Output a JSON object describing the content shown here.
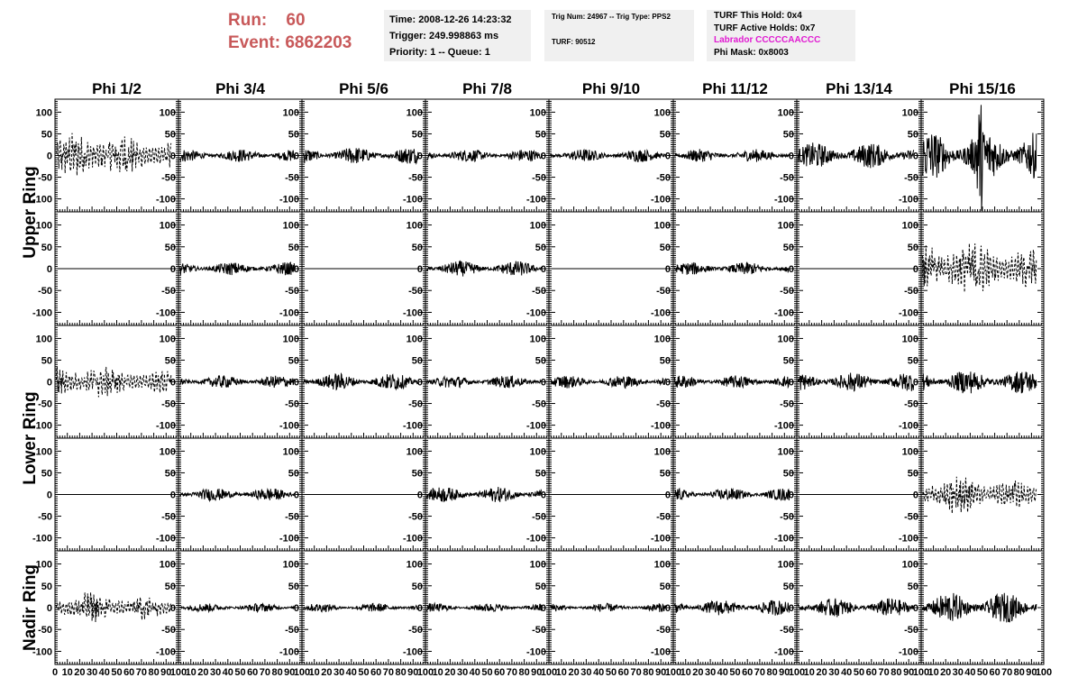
{
  "header": {
    "run_label": "Run:",
    "run_value": "60",
    "event_label": "Event:",
    "event_value": "6862203"
  },
  "info_panel_1": {
    "time": "Time: 2008-12-26 14:23:32",
    "trigger": "Trigger: 249.998863 ms",
    "priority": "Priority: 1 -- Queue: 1"
  },
  "info_panel_2": {
    "trig": "Trig Num: 24967 -- Trig Type: PPS2",
    "turf": "TURF: 90512"
  },
  "info_panel_3": {
    "hold": "TURF This Hold: 0x4",
    "active": "TURF Active Holds: 0x7",
    "labrador": "Labrador CCCCCAACCC",
    "phi_mask": "Phi Mask: 0x8003"
  },
  "colors": {
    "run_text": "#c8595a",
    "labrador_text": "#e11bd2",
    "panel_bg": "#f0f0f0",
    "trace": "#000000"
  },
  "columns": [
    "Phi 1/2",
    "Phi 3/4",
    "Phi 5/6",
    "Phi 7/8",
    "Phi 9/10",
    "Phi 11/12",
    "Phi 13/14",
    "Phi 15/16"
  ],
  "rings": [
    "Upper Ring",
    "Lower Ring",
    "Nadir Ring"
  ],
  "y_ticks": [
    "100",
    "50",
    "0",
    "-50",
    "-100"
  ],
  "x_ticks_first": [
    "0",
    "10",
    "20",
    "30",
    "40",
    "50",
    "60",
    "70",
    "80",
    "90",
    "100"
  ],
  "x_ticks_other": [
    "10",
    "20",
    "30",
    "40",
    "50",
    "60",
    "70",
    "80",
    "90",
    "100"
  ],
  "chart_data": {
    "type": "line",
    "xlim": [
      0,
      100
    ],
    "ylim": [
      -130,
      130
    ],
    "grid": false,
    "traces": [
      [
        "dashed",
        "solid",
        "solid",
        "solid",
        "solid",
        "solid",
        "solid",
        "solid"
      ],
      [
        "flat",
        "solid",
        "flat",
        "solid",
        "flat",
        "solid",
        "flat",
        "dashed"
      ],
      [
        "dashed",
        "solid",
        "solid",
        "solid",
        "solid",
        "solid",
        "solid",
        "solid"
      ],
      [
        "flat",
        "solid",
        "flat",
        "solid",
        "flat",
        "solid",
        "flat",
        "dashed"
      ],
      [
        "dashed",
        "solid",
        "solid",
        "solid",
        "solid",
        "solid",
        "solid",
        "solid"
      ]
    ],
    "amplitude": [
      [
        35,
        15,
        20,
        15,
        15,
        15,
        30,
        60
      ],
      [
        0,
        15,
        0,
        18,
        0,
        15,
        0,
        40
      ],
      [
        25,
        15,
        20,
        15,
        15,
        15,
        22,
        28
      ],
      [
        0,
        15,
        0,
        18,
        0,
        15,
        0,
        28
      ],
      [
        22,
        10,
        10,
        10,
        10,
        18,
        22,
        35
      ]
    ]
  }
}
